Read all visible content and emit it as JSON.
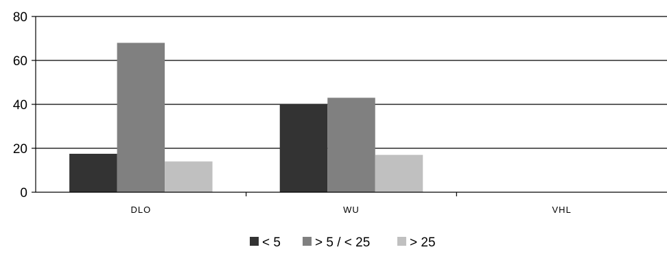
{
  "chart_data": {
    "type": "bar",
    "title": "",
    "xlabel": "",
    "ylabel": "",
    "categories": [
      "DLO",
      "WU",
      "VHL"
    ],
    "series": [
      {
        "name": "< 5",
        "values": [
          17.5,
          40,
          0
        ],
        "color": "#333333"
      },
      {
        "name": "> 5 / < 25",
        "values": [
          68,
          43,
          0
        ],
        "color": "#808080"
      },
      {
        "name": "> 25",
        "values": [
          14,
          17,
          0
        ],
        "color": "#c0c0c0"
      }
    ],
    "ylim": [
      0,
      80
    ],
    "yticks": [
      "0",
      "20",
      "40",
      "60",
      "80"
    ],
    "grid": true,
    "legend_position": "bottom"
  }
}
